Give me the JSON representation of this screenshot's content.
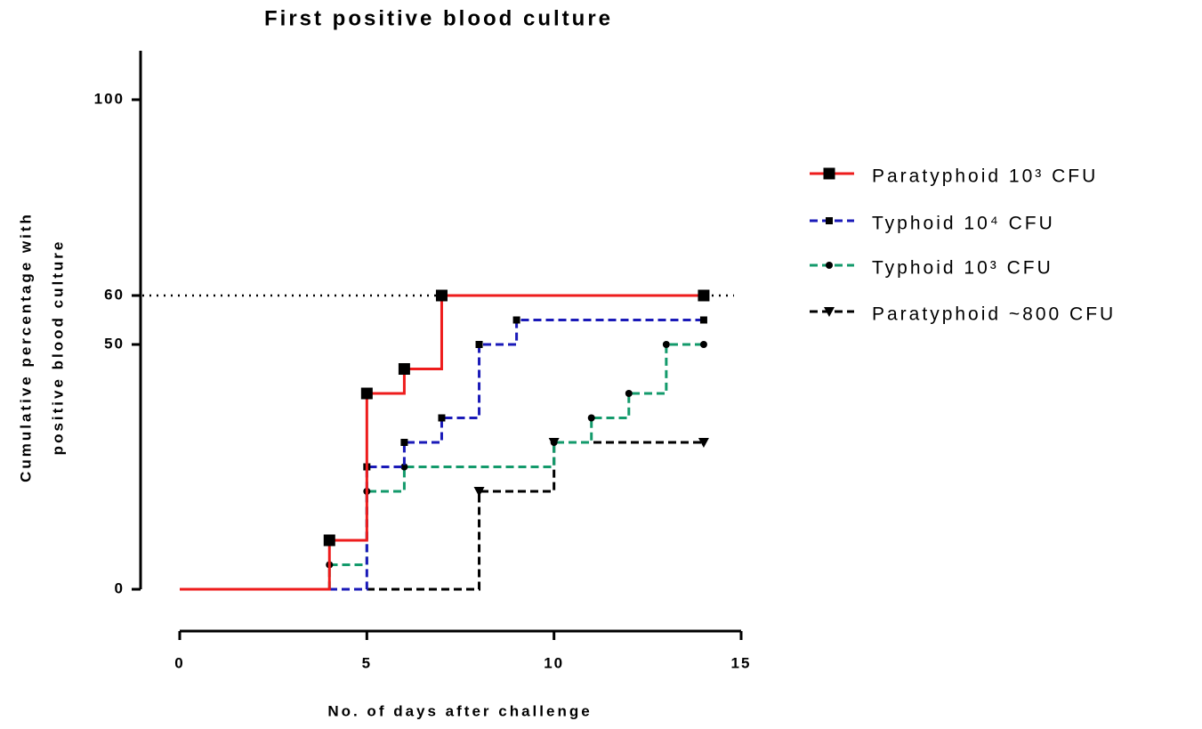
{
  "chart_data": {
    "type": "step",
    "title": "First positive blood culture",
    "xlabel": "No. of days after challenge",
    "ylabel": [
      "Cumulative percentage with",
      "positive blood culture"
    ],
    "xlim": [
      0,
      15
    ],
    "xticks": [
      0,
      5,
      10,
      15
    ],
    "ylim": [
      0,
      110
    ],
    "yticks": [
      0,
      50,
      60,
      100
    ],
    "reference_line": 60,
    "legend": "right",
    "series": [
      {
        "name": "Paratyphoid 10³ CFU",
        "color": "#ee1c1c",
        "marker": "square",
        "dashed": false,
        "x": [
          0,
          4,
          5,
          6,
          7,
          14
        ],
        "values": [
          0,
          10,
          40,
          45,
          60,
          60
        ]
      },
      {
        "name": "Typhoid 10⁴ CFU",
        "color": "#1a1ab8",
        "marker": "small-square",
        "dashed": true,
        "x": [
          0,
          5,
          6,
          7,
          8,
          9,
          14
        ],
        "values": [
          0,
          25,
          30,
          35,
          50,
          55,
          55
        ]
      },
      {
        "name": "Typhoid 10³ CFU",
        "color": "#139a6b",
        "marker": "circle",
        "dashed": true,
        "x": [
          0,
          4,
          5,
          6,
          10,
          11,
          12,
          13,
          14
        ],
        "values": [
          0,
          5,
          20,
          25,
          30,
          35,
          40,
          50,
          50
        ]
      },
      {
        "name": "Paratyphoid ~800 CFU",
        "color": "#000000",
        "marker": "triangle-down",
        "dashed": true,
        "x": [
          0,
          8,
          10,
          14
        ],
        "values": [
          0,
          20,
          30,
          30
        ]
      }
    ]
  }
}
